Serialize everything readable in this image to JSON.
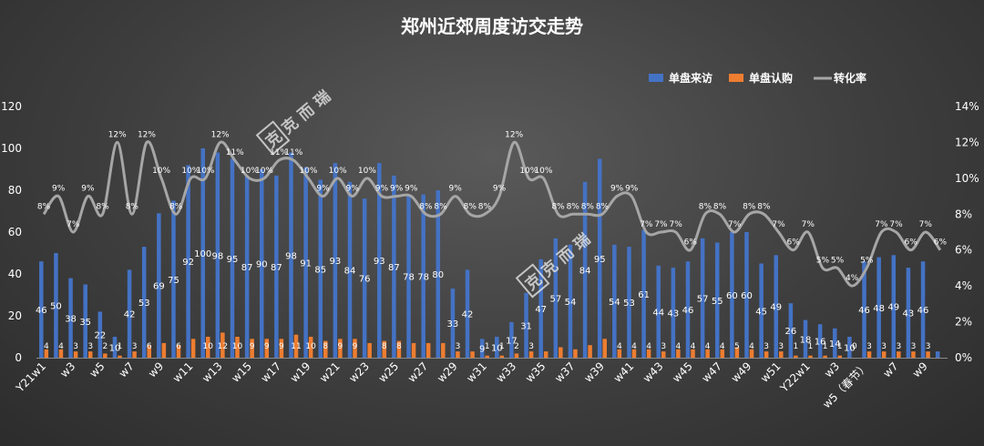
{
  "chart_data": {
    "type": "bar",
    "title": "郑州近郊周度访交走势",
    "legend_position": "top-right",
    "y_left": {
      "min": 0,
      "max": 120,
      "ticks": [
        "0",
        "20",
        "40",
        "60",
        "80",
        "100",
        "120"
      ]
    },
    "y_right": {
      "min": 0,
      "max": 14,
      "ticks": [
        "0%",
        "2%",
        "4%",
        "6%",
        "8%",
        "10%",
        "12%",
        "14%"
      ]
    },
    "grid": false,
    "x_tick_labels": [
      "Y21w1",
      "w3",
      "w5",
      "w7",
      "w9",
      "w11",
      "w13",
      "w15",
      "w17",
      "w19",
      "w21",
      "w23",
      "w25",
      "w27",
      "w29",
      "w31",
      "w33",
      "w35",
      "w37",
      "w39",
      "w41",
      "w43",
      "w45",
      "w47",
      "w49",
      "w51",
      "Y22w1",
      "w3",
      "w5（春节）",
      "w7",
      "w9"
    ],
    "categories_count": 62,
    "series": [
      {
        "name": "单盘来访",
        "type": "bar",
        "axis": "left",
        "color": "#4472c4",
        "values": [
          46,
          50,
          38,
          35,
          22,
          10,
          42,
          53,
          69,
          75,
          92,
          100,
          98,
          95,
          87,
          90,
          87,
          98,
          91,
          85,
          93,
          84,
          76,
          93,
          87,
          78,
          78,
          80,
          33,
          42,
          9,
          10,
          17,
          31,
          47,
          57,
          54,
          84,
          95,
          54,
          53,
          61,
          44,
          43,
          46,
          57,
          55,
          60,
          60,
          45,
          49,
          26,
          18,
          16,
          14,
          10,
          46,
          48,
          49,
          43,
          46,
          3
        ],
        "labels": [
          "46",
          "50",
          "38",
          "35",
          "22",
          "10",
          "42",
          "53",
          "69",
          "75",
          "92",
          "100",
          "98",
          "95",
          "87",
          "90",
          "87",
          "98",
          "91",
          "85",
          "93",
          "84",
          "76",
          "93",
          "87",
          "78",
          "78",
          "80",
          "33",
          "42",
          "9",
          "10",
          "17",
          "31",
          "47",
          "57",
          "54",
          "84",
          "95",
          "54",
          "53",
          "61",
          "44",
          "43",
          "46",
          "57",
          "55",
          "60",
          "60",
          "45",
          "49",
          "26",
          "18",
          "16",
          "14",
          "10",
          "46",
          "48",
          "49",
          "43",
          "46",
          ""
        ]
      },
      {
        "name": "单盘认购",
        "type": "bar",
        "axis": "left",
        "color": "#ed7d31",
        "values": [
          4,
          4,
          3,
          3,
          2,
          1,
          3,
          6,
          7,
          6,
          9,
          10,
          12,
          10,
          9,
          9,
          9,
          11,
          10,
          8,
          9,
          9,
          7,
          8,
          8,
          7,
          7,
          7,
          3,
          3,
          1,
          1,
          2,
          3,
          3,
          5,
          4,
          6,
          9,
          4,
          4,
          4,
          3,
          4,
          4,
          4,
          4,
          5,
          4,
          3,
          3,
          1,
          1,
          1,
          1,
          0,
          3,
          3,
          3,
          3,
          3,
          0
        ],
        "labels": [
          "4",
          "4",
          "3",
          "3",
          "2",
          "1",
          "3",
          "6",
          "",
          "6",
          "",
          "10",
          "12",
          "10",
          "9",
          "9",
          "9",
          "11",
          "10",
          "8",
          "9",
          "9",
          "",
          "8",
          "8",
          "",
          "",
          "",
          "3",
          "",
          "1",
          "1",
          "2",
          "3",
          "",
          "",
          "",
          "",
          "",
          "4",
          "4",
          "4",
          "3",
          "4",
          "4",
          "4",
          "4",
          "5",
          "4",
          "3",
          "3",
          "1",
          "1",
          "1",
          "1",
          "0",
          "3",
          "3",
          "3",
          "3",
          "3",
          ""
        ]
      },
      {
        "name": "转化率",
        "type": "line",
        "axis": "right",
        "color": "#a6a6a6",
        "values": [
          8,
          9,
          7,
          9,
          8,
          12,
          8,
          12,
          10,
          8,
          10,
          10,
          12,
          11,
          10,
          10,
          11,
          11,
          10,
          9,
          10,
          9,
          10,
          9,
          9,
          9,
          8,
          8,
          9,
          8,
          8,
          9,
          12,
          10,
          10,
          8,
          8,
          8,
          8,
          9,
          9,
          7,
          7,
          7,
          6,
          8,
          8,
          7,
          8,
          8,
          7,
          6,
          7,
          5,
          5,
          4,
          5,
          7,
          7,
          6,
          7,
          6
        ],
        "labels": [
          "8%",
          "9%",
          "7%",
          "9%",
          "8%",
          "12%",
          "8%",
          "12%",
          "10%",
          "8%",
          "10%",
          "10%",
          "12%",
          "11%",
          "10%",
          "10%",
          "11%",
          "11%",
          "10%",
          "9%",
          "10%",
          "9%",
          "10%",
          "9%",
          "9%",
          "9%",
          "8%",
          "8%",
          "9%",
          "8%",
          "8%",
          "9%",
          "12%",
          "10%",
          "10%",
          "8%",
          "8%",
          "8%",
          "8%",
          "9%",
          "9%",
          "7%",
          "7%",
          "7%",
          "6%",
          "8%",
          "8%",
          "7%",
          "8%",
          "8%",
          "7%",
          "6%",
          "7%",
          "5%",
          "5%",
          "4%",
          "5%",
          "7%",
          "7%",
          "6%",
          "7%",
          "6%"
        ]
      }
    ]
  },
  "watermark": "克而瑞"
}
